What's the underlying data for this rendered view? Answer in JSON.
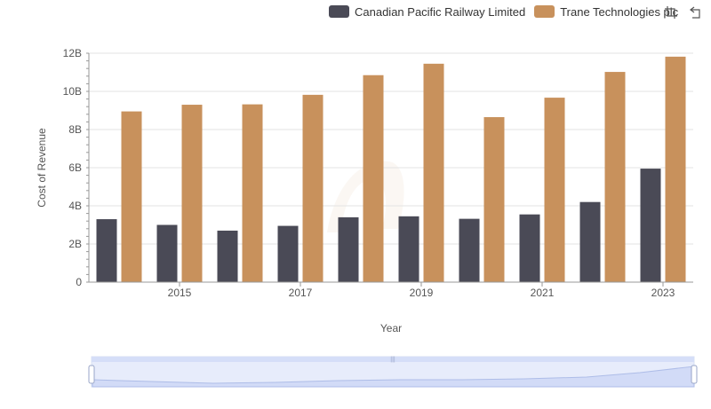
{
  "legend": {
    "items": [
      {
        "label": "Canadian Pacific Railway Limited",
        "color": "#4a4a56"
      },
      {
        "label": "Trane Technologies plc",
        "color": "#c8915c"
      }
    ]
  },
  "toolbar": {
    "icons": [
      "zoom-icon",
      "restore-icon"
    ]
  },
  "chart_data": {
    "type": "bar",
    "xlabel": "Year",
    "ylabel": "Cost of Revenue",
    "categories": [
      "2014",
      "2015",
      "2016",
      "2017",
      "2018",
      "2019",
      "2020",
      "2021",
      "2022",
      "2023"
    ],
    "x_tick_labels": [
      "2015",
      "2017",
      "2019",
      "2021",
      "2023"
    ],
    "y_tick_labels": [
      "0",
      "2B",
      "4B",
      "6B",
      "8B",
      "10B",
      "12B"
    ],
    "ylim": [
      0,
      12000000000
    ],
    "grid": true,
    "legend_position": "top",
    "series": [
      {
        "name": "Canadian Pacific Railway Limited",
        "color": "#4a4a56",
        "values": [
          3300000000,
          3000000000,
          2700000000,
          2950000000,
          3400000000,
          3450000000,
          3320000000,
          3550000000,
          4200000000,
          5950000000
        ]
      },
      {
        "name": "Trane Technologies plc",
        "color": "#c8915c",
        "values": [
          8950000000,
          9300000000,
          9320000000,
          9820000000,
          10850000000,
          11450000000,
          8650000000,
          9670000000,
          11020000000,
          11820000000
        ]
      }
    ]
  }
}
